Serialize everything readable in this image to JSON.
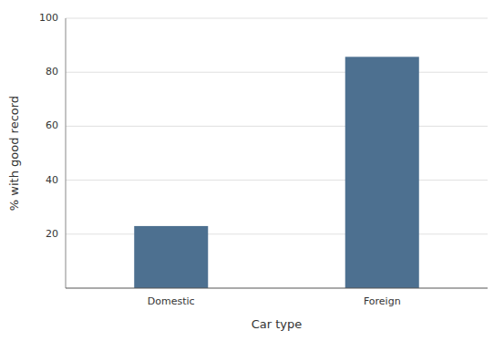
{
  "chart_data": {
    "type": "bar",
    "categories": [
      "Domestic",
      "Foreign"
    ],
    "values": [
      23.0,
      85.7
    ],
    "color": "#4d7090",
    "xlabel": "Car type",
    "ylabel": "% with good record",
    "ylim": [
      0,
      100
    ],
    "yticks": [
      20,
      40,
      60,
      80,
      100
    ],
    "grid": true
  }
}
